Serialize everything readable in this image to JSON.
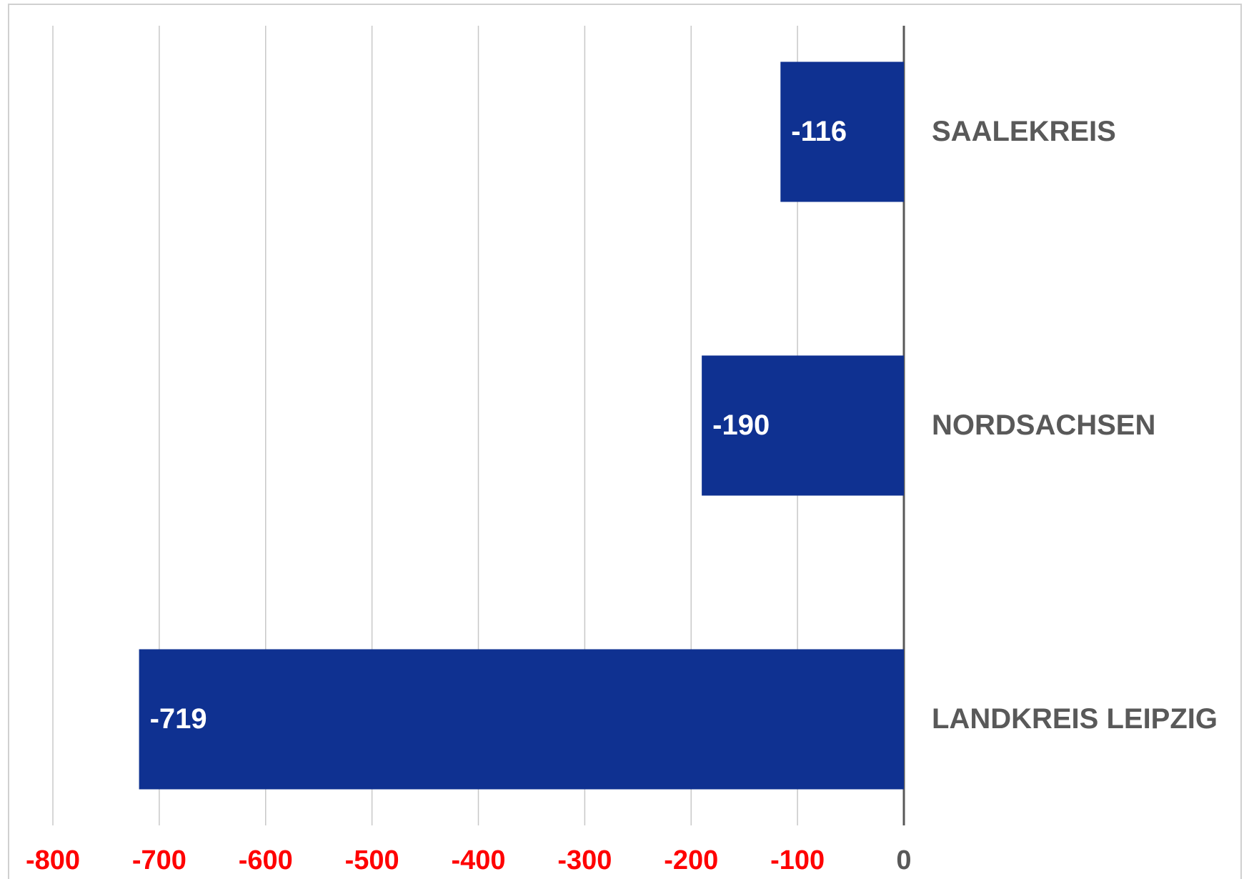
{
  "chart_data": {
    "type": "hbar",
    "categories": [
      "SAALEKREIS",
      "NORDSACHSEN",
      "LANDKREIS LEIPZIG"
    ],
    "values": [
      -116,
      -190,
      -719
    ],
    "color": "#0f3191",
    "xlim": [
      -800,
      0
    ],
    "xticks": [
      -800,
      -700,
      -600,
      -500,
      -400,
      -300,
      -200,
      -100,
      0
    ],
    "tick_label_colors": [
      "#ff0000",
      "#ff0000",
      "#ff0000",
      "#ff0000",
      "#ff0000",
      "#ff0000",
      "#ff0000",
      "#ff0000",
      "#595959"
    ],
    "grid": true
  }
}
